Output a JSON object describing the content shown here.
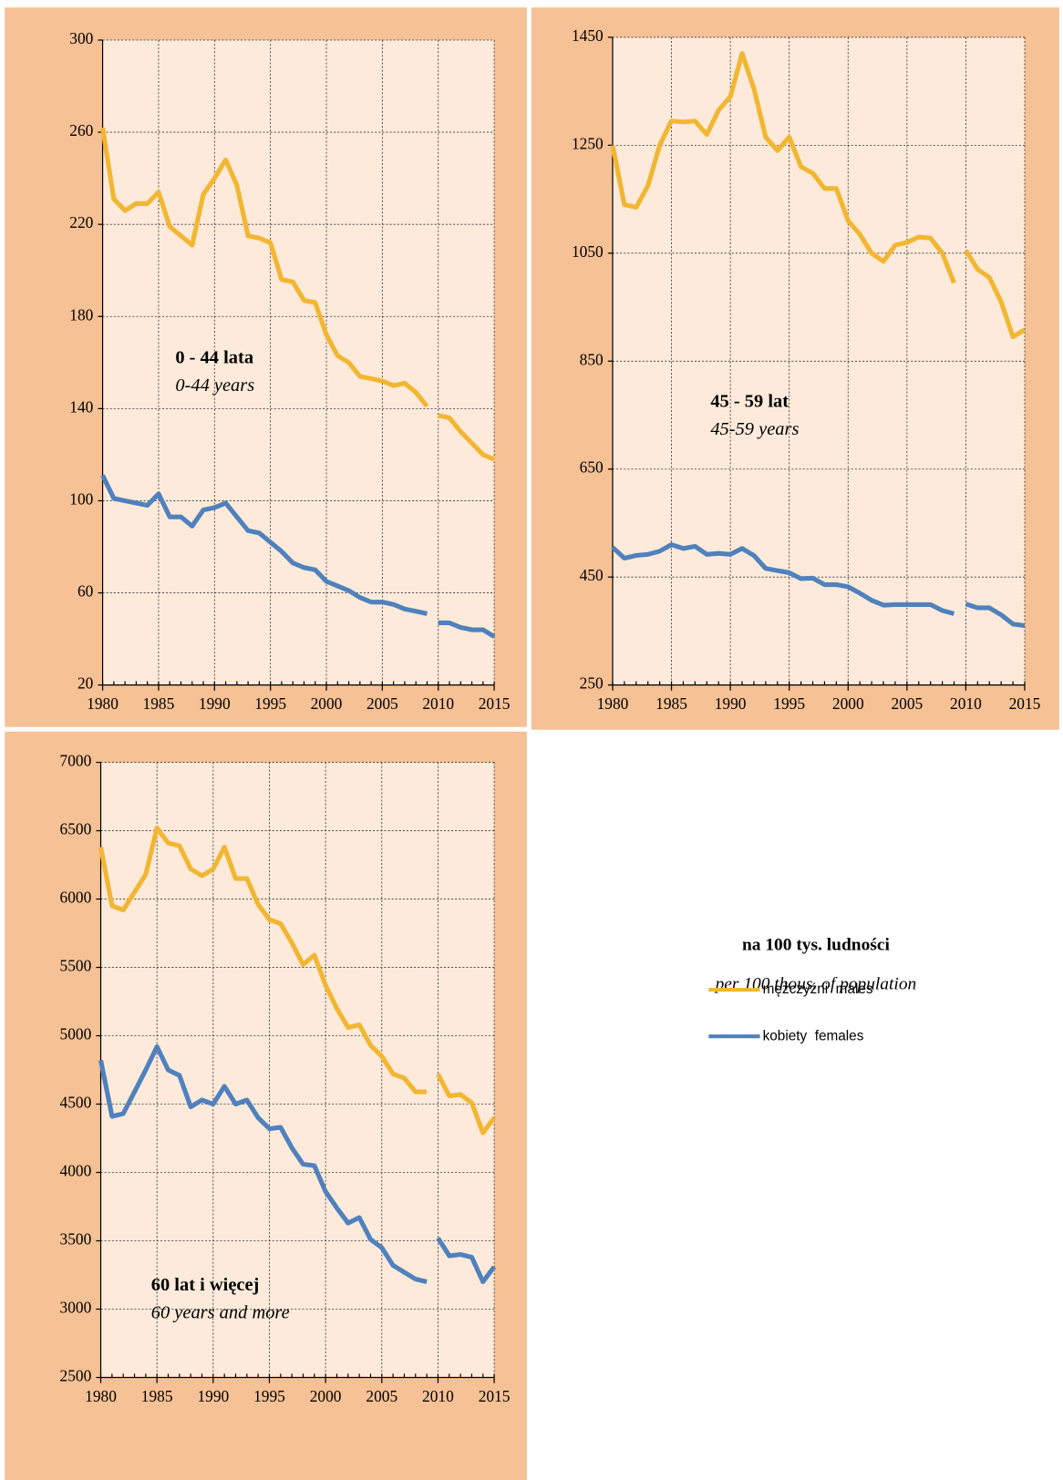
{
  "chart_data": [
    {
      "type": "line",
      "annotations": [
        "0 - 44 lata",
        "0-44 years"
      ],
      "x": [
        1980,
        1981,
        1982,
        1983,
        1984,
        1985,
        1986,
        1987,
        1988,
        1989,
        1990,
        1991,
        1992,
        1993,
        1994,
        1995,
        1996,
        1997,
        1998,
        1999,
        2000,
        2001,
        2002,
        2003,
        2004,
        2005,
        2006,
        2007,
        2008,
        2009,
        2010,
        2011,
        2012,
        2013,
        2014,
        2015
      ],
      "xlim": [
        1980,
        2015
      ],
      "xticks": [
        1980,
        1985,
        1990,
        1995,
        2000,
        2005,
        2010,
        2015
      ],
      "ylim": [
        20,
        300
      ],
      "yticks": [
        20,
        60,
        100,
        140,
        180,
        220,
        260,
        300
      ],
      "grid": true,
      "line_break_after": 2009,
      "series": [
        {
          "name": "mężczyźni  males",
          "color": "#F2B632",
          "values": [
            262,
            231,
            226,
            229,
            229,
            234,
            219,
            215,
            211,
            233,
            240,
            248,
            237,
            215,
            214,
            212,
            196,
            195,
            187,
            186,
            172,
            163,
            160,
            154,
            153,
            152,
            150,
            151,
            147,
            141,
            137,
            136,
            130,
            125,
            120,
            118
          ]
        },
        {
          "name": "kobiety  females",
          "color": "#4F81BD",
          "values": [
            111,
            101,
            100,
            99,
            98,
            103,
            93,
            93,
            89,
            96,
            97,
            99,
            93,
            87,
            86,
            82,
            78,
            73,
            71,
            70,
            65,
            63,
            61,
            58,
            56,
            56,
            55,
            53,
            52,
            51,
            47,
            47,
            45,
            44,
            44,
            41
          ]
        }
      ]
    },
    {
      "type": "line",
      "annotations": [
        "45 - 59 lat",
        "45-59 years"
      ],
      "x": [
        1980,
        1981,
        1982,
        1983,
        1984,
        1985,
        1986,
        1987,
        1988,
        1989,
        1990,
        1991,
        1992,
        1993,
        1994,
        1995,
        1996,
        1997,
        1998,
        1999,
        2000,
        2001,
        2002,
        2003,
        2004,
        2005,
        2006,
        2007,
        2008,
        2009,
        2010,
        2011,
        2012,
        2013,
        2014,
        2015
      ],
      "xlim": [
        1980,
        2015
      ],
      "xticks": [
        1980,
        1985,
        1990,
        1995,
        2000,
        2005,
        2010,
        2015
      ],
      "ylim": [
        250,
        1450
      ],
      "yticks": [
        250,
        450,
        650,
        850,
        1050,
        1250,
        1450
      ],
      "grid": true,
      "line_break_after": 2009,
      "series": [
        {
          "name": "mężczyźni  males",
          "color": "#F2B632",
          "values": [
            1250,
            1140,
            1135,
            1175,
            1250,
            1295,
            1293,
            1295,
            1270,
            1315,
            1340,
            1420,
            1355,
            1265,
            1240,
            1265,
            1210,
            1198,
            1170,
            1170,
            1110,
            1085,
            1050,
            1035,
            1065,
            1070,
            1080,
            1078,
            1050,
            995,
            1055,
            1020,
            1005,
            960,
            895,
            908
          ]
        },
        {
          "name": "kobiety  females",
          "color": "#4F81BD",
          "values": [
            505,
            485,
            490,
            492,
            498,
            510,
            503,
            507,
            492,
            494,
            492,
            503,
            490,
            466,
            462,
            458,
            447,
            448,
            436,
            436,
            432,
            420,
            407,
            398,
            399,
            399,
            399,
            399,
            388,
            382,
            400,
            393,
            393,
            380,
            363,
            360
          ]
        }
      ]
    },
    {
      "type": "line",
      "annotations": [
        "60 lat i więcej",
        "60 years and more"
      ],
      "x": [
        1980,
        1981,
        1982,
        1983,
        1984,
        1985,
        1986,
        1987,
        1988,
        1989,
        1990,
        1991,
        1992,
        1993,
        1994,
        1995,
        1996,
        1997,
        1998,
        1999,
        2000,
        2001,
        2002,
        2003,
        2004,
        2005,
        2006,
        2007,
        2008,
        2009,
        2010,
        2011,
        2012,
        2013,
        2014,
        2015
      ],
      "xlim": [
        1980,
        2015
      ],
      "xticks": [
        1980,
        1985,
        1990,
        1995,
        2000,
        2005,
        2010,
        2015
      ],
      "ylim": [
        2500,
        7000
      ],
      "yticks": [
        2500,
        3000,
        3500,
        4000,
        4500,
        5000,
        5500,
        6000,
        6500,
        7000
      ],
      "grid": true,
      "line_break_after": 2009,
      "series": [
        {
          "name": "mężczyźni  males",
          "color": "#F2B632",
          "values": [
            6380,
            5950,
            5920,
            6050,
            6180,
            6520,
            6410,
            6390,
            6220,
            6170,
            6220,
            6380,
            6150,
            6150,
            5960,
            5850,
            5820,
            5680,
            5520,
            5590,
            5370,
            5200,
            5060,
            5080,
            4930,
            4850,
            4720,
            4690,
            4590,
            4590,
            4720,
            4560,
            4570,
            4510,
            4290,
            4400
          ]
        },
        {
          "name": "kobiety  females",
          "color": "#4F81BD",
          "values": [
            4820,
            4410,
            4430,
            4590,
            4750,
            4920,
            4750,
            4710,
            4480,
            4530,
            4500,
            4630,
            4500,
            4530,
            4400,
            4320,
            4330,
            4180,
            4060,
            4050,
            3860,
            3740,
            3630,
            3670,
            3510,
            3450,
            3320,
            3270,
            3220,
            3200,
            3520,
            3390,
            3400,
            3380,
            3200,
            3310
          ]
        }
      ]
    }
  ],
  "notes": [
    "na 100 tys. ludności",
    "per 100 thous. of population"
  ]
}
